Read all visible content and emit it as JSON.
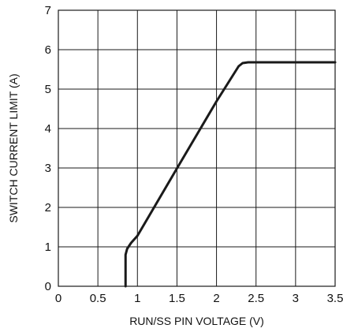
{
  "chart_data": {
    "type": "line",
    "title": "",
    "xlabel": "RUN/SS PIN VOLTAGE (V)",
    "ylabel": "SWITCH CURRENT LIMIT (A)",
    "xlim": [
      0,
      3.5
    ],
    "ylim": [
      0,
      7
    ],
    "grid": true,
    "legend": "none",
    "x_ticks": [
      "0",
      "0.5",
      "1",
      "1.5",
      "2",
      "2.5",
      "3",
      "3.5"
    ],
    "y_ticks": [
      "0",
      "1",
      "2",
      "3",
      "4",
      "5",
      "6",
      "7"
    ],
    "x_tick_values": [
      0,
      0.5,
      1,
      1.5,
      2,
      2.5,
      3,
      3.5
    ],
    "y_tick_values": [
      0,
      1,
      2,
      3,
      4,
      5,
      6,
      7
    ],
    "series": [
      {
        "color": "#1a1a1a",
        "x": [
          0.85,
          0.85,
          0.87,
          0.92,
          1.0,
          1.5,
          2.0,
          2.28,
          2.33,
          2.4,
          2.6,
          3.0,
          3.5
        ],
        "y": [
          0.0,
          0.8,
          0.95,
          1.1,
          1.28,
          2.99,
          4.69,
          5.58,
          5.66,
          5.68,
          5.68,
          5.68,
          5.68
        ]
      }
    ]
  }
}
